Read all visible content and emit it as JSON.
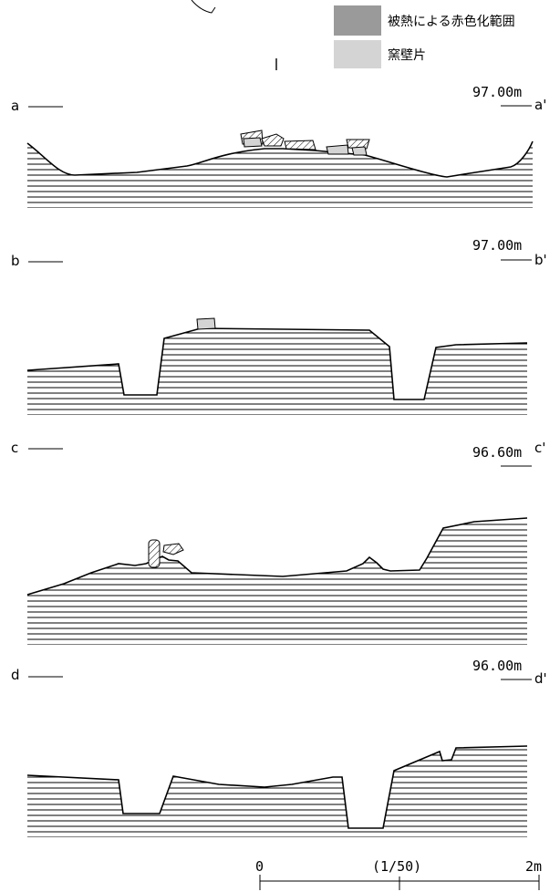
{
  "legend": {
    "burned_label": "被熱による赤色化範囲",
    "burned_color": "#9a9a9a",
    "kiln_wall_label": "窯壁片",
    "kiln_wall_color": "#d4d4d4"
  },
  "sections": [
    {
      "id": "a",
      "left_label": "a",
      "right_label": "a'",
      "elevation": "97.00m"
    },
    {
      "id": "b",
      "left_label": "b",
      "right_label": "b'",
      "elevation": "97.00m"
    },
    {
      "id": "c",
      "left_label": "c",
      "right_label": "c'",
      "elevation": "96.60m"
    },
    {
      "id": "d",
      "left_label": "d",
      "right_label": "d'",
      "elevation": "96.00m"
    }
  ],
  "scale_bar": {
    "start_label": "0",
    "ratio_label": "(1/50)",
    "end_label": "2m"
  },
  "colors": {
    "line": "#000000",
    "hatch_fill": "#ffffff"
  }
}
